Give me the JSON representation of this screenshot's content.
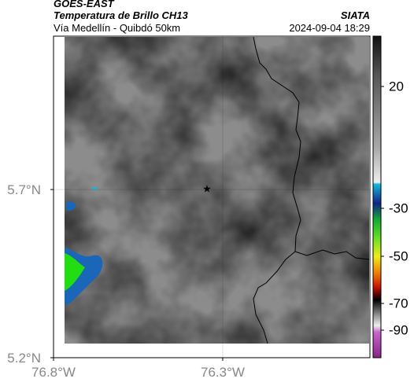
{
  "header": {
    "product": "GOES-EAST",
    "title": "Temperatura de Brillo CH13",
    "source": "SIATA",
    "route": "Vía Medellín - Quibdó 50km",
    "datetime": "2024-09-04 18:29"
  },
  "map": {
    "xlim": [
      -76.8,
      -75.865
    ],
    "ylim": [
      5.2,
      6.156
    ],
    "xticks": [
      {
        "value": -76.8,
        "label": "76.8°W"
      },
      {
        "value": -76.3,
        "label": "76.3°W"
      }
    ],
    "yticks": [
      {
        "value": 5.2,
        "label": "5.2°N"
      },
      {
        "value": 5.7,
        "label": "5.7°N"
      }
    ],
    "grid": true
  },
  "colorbar": {
    "ticks": [
      20,
      -30,
      -50,
      -70,
      -90
    ]
  }
}
